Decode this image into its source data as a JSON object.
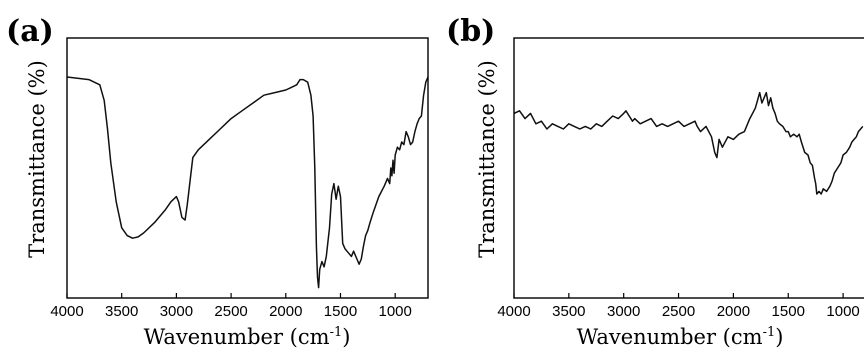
{
  "chart_data": [
    {
      "type": "line",
      "panel_label": "(a)",
      "xlabel_main": "Wavenumber (cm",
      "xlabel_sup": "-1",
      "xlabel_end": ")",
      "ylabel": "Transmittance (%)",
      "xlim": [
        4000,
        700
      ],
      "x_reversed": true,
      "ylim": [
        0,
        100
      ],
      "y_ticks_labeled": false,
      "x_ticks": [
        4000,
        3500,
        3000,
        2500,
        2000,
        1500,
        1000
      ],
      "x_tick_labels": [
        "4000",
        "3500",
        "3000",
        "2500",
        "2000",
        "1500",
        "1000"
      ],
      "series": [
        {
          "x": [
            4000,
            3800,
            3700,
            3660,
            3630,
            3600,
            3550,
            3500,
            3450,
            3400,
            3350,
            3300,
            3200,
            3100,
            3050,
            3000,
            2980,
            2950,
            2920,
            2900,
            2850,
            2800,
            2700,
            2600,
            2500,
            2400,
            2300,
            2200,
            2100,
            2000,
            1950,
            1900,
            1870,
            1840,
            1800,
            1770,
            1750,
            1735,
            1720,
            1710,
            1700,
            1690,
            1670,
            1650,
            1630,
            1600,
            1580,
            1560,
            1540,
            1520,
            1500,
            1480,
            1460,
            1440,
            1420,
            1400,
            1380,
            1350,
            1330,
            1310,
            1290,
            1270,
            1250,
            1230,
            1200,
            1150,
            1100,
            1070,
            1050,
            1040,
            1030,
            1020,
            1010,
            1000,
            980,
            960,
            940,
            920,
            900,
            880,
            860,
            840,
            820,
            800,
            780,
            760,
            740,
            720,
            700
          ],
          "y": [
            85,
            84,
            82,
            76,
            65,
            52,
            37,
            27,
            24,
            23,
            23.5,
            25,
            29,
            34,
            37,
            39,
            37,
            31,
            30,
            36,
            54,
            57,
            61,
            65,
            69,
            72,
            75,
            78,
            79,
            80,
            81,
            82,
            84,
            84,
            83,
            78,
            70,
            50,
            20,
            8,
            4,
            11,
            14,
            12,
            16,
            27,
            40,
            44,
            38,
            43,
            39,
            21,
            19,
            18,
            17,
            16,
            18,
            15,
            13,
            15,
            20,
            24,
            26,
            29,
            33,
            39,
            43,
            46,
            44,
            50,
            47,
            53,
            48,
            55,
            58,
            57,
            60,
            59,
            64,
            62,
            59,
            60,
            64,
            67,
            69,
            70,
            78,
            83,
            85
          ]
        }
      ]
    },
    {
      "type": "line",
      "panel_label": "(b)",
      "xlabel_main": "Wavenumber (cm",
      "xlabel_sup": "-1",
      "xlabel_end": ")",
      "ylabel": "Transmittance (%)",
      "xlim": [
        4000,
        700
      ],
      "x_reversed": true,
      "ylim": [
        0,
        100
      ],
      "y_ticks_labeled": false,
      "x_ticks": [
        4000,
        3500,
        3000,
        2500,
        2000,
        1500,
        1000
      ],
      "x_tick_labels": [
        "4000",
        "3500",
        "3000",
        "2500",
        "2000",
        "1500",
        "1000"
      ],
      "series": [
        {
          "x": [
            4000,
            3950,
            3900,
            3850,
            3800,
            3750,
            3700,
            3650,
            3600,
            3550,
            3500,
            3450,
            3400,
            3350,
            3300,
            3250,
            3200,
            3150,
            3100,
            3050,
            3000,
            2980,
            2950,
            2920,
            2900,
            2850,
            2800,
            2750,
            2700,
            2650,
            2600,
            2550,
            2500,
            2450,
            2400,
            2350,
            2330,
            2300,
            2250,
            2200,
            2170,
            2150,
            2130,
            2100,
            2050,
            2000,
            1950,
            1900,
            1850,
            1800,
            1780,
            1760,
            1740,
            1720,
            1700,
            1680,
            1660,
            1640,
            1620,
            1600,
            1580,
            1550,
            1520,
            1500,
            1480,
            1450,
            1420,
            1400,
            1380,
            1350,
            1320,
            1300,
            1280,
            1260,
            1250,
            1240,
            1220,
            1200,
            1180,
            1150,
            1120,
            1100,
            1080,
            1050,
            1020,
            1000,
            970,
            940,
            920,
            900,
            880,
            860,
            840,
            820
          ],
          "y": [
            71,
            72,
            69,
            71,
            67,
            68,
            65,
            67,
            66,
            65,
            67,
            66,
            65,
            66,
            65,
            67,
            66,
            68,
            70,
            69,
            71,
            72,
            70,
            68,
            69,
            67,
            68,
            69,
            66,
            67,
            66,
            67,
            68,
            66,
            67,
            68,
            66,
            64,
            66,
            62,
            56,
            54,
            61,
            58,
            62,
            61,
            63,
            64,
            69,
            73,
            76,
            79,
            75,
            77,
            79,
            74,
            77,
            73,
            71,
            68,
            67,
            66,
            64,
            64,
            62,
            63,
            62,
            63,
            60,
            56,
            55,
            52,
            51,
            46,
            44,
            40,
            41,
            40,
            42,
            41,
            43,
            45,
            48,
            50,
            52,
            55,
            56,
            58,
            60,
            61,
            62,
            64,
            65,
            66
          ]
        }
      ]
    }
  ]
}
